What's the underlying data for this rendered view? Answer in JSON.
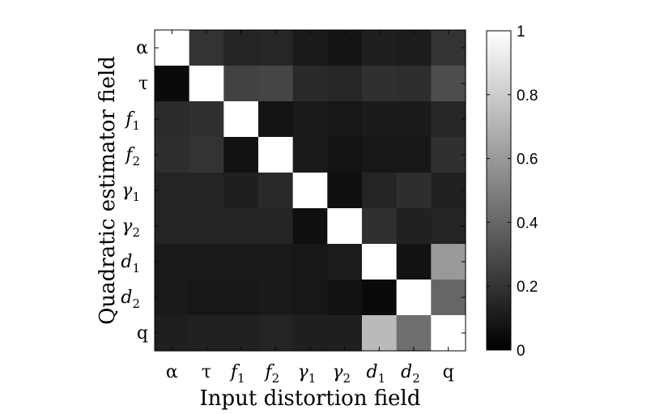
{
  "chart_data": {
    "type": "heatmap",
    "x_categories": [
      "α",
      "τ",
      "f1",
      "f2",
      "γ1",
      "γ2",
      "d1",
      "d2",
      "q"
    ],
    "y_categories": [
      "α",
      "τ",
      "f1",
      "f2",
      "γ1",
      "γ2",
      "d1",
      "d2",
      "q"
    ],
    "x_tick_labels": [
      {
        "base": "α",
        "sub": ""
      },
      {
        "base": "τ",
        "sub": ""
      },
      {
        "base": "f",
        "sub": "1"
      },
      {
        "base": "f",
        "sub": "2"
      },
      {
        "base": "γ",
        "sub": "1"
      },
      {
        "base": "γ",
        "sub": "2"
      },
      {
        "base": "d",
        "sub": "1"
      },
      {
        "base": "d",
        "sub": "2"
      },
      {
        "base": "q",
        "sub": ""
      }
    ],
    "y_tick_labels": [
      {
        "base": "α",
        "sub": ""
      },
      {
        "base": "τ",
        "sub": ""
      },
      {
        "base": "f",
        "sub": "1"
      },
      {
        "base": "f",
        "sub": "2"
      },
      {
        "base": "γ",
        "sub": "1"
      },
      {
        "base": "γ",
        "sub": "2"
      },
      {
        "base": "d",
        "sub": "1"
      },
      {
        "base": "d",
        "sub": "2"
      },
      {
        "base": "q",
        "sub": ""
      }
    ],
    "values": [
      [
        1.0,
        0.2,
        0.14,
        0.15,
        0.1,
        0.08,
        0.12,
        0.11,
        0.2
      ],
      [
        0.04,
        1.0,
        0.26,
        0.27,
        0.16,
        0.15,
        0.19,
        0.18,
        0.3
      ],
      [
        0.17,
        0.19,
        1.0,
        0.08,
        0.1,
        0.09,
        0.1,
        0.1,
        0.15
      ],
      [
        0.18,
        0.2,
        0.07,
        1.0,
        0.1,
        0.08,
        0.09,
        0.09,
        0.19
      ],
      [
        0.14,
        0.14,
        0.12,
        0.16,
        1.0,
        0.06,
        0.14,
        0.18,
        0.13
      ],
      [
        0.14,
        0.14,
        0.14,
        0.14,
        0.06,
        1.0,
        0.19,
        0.13,
        0.14
      ],
      [
        0.1,
        0.1,
        0.1,
        0.1,
        0.09,
        0.11,
        1.0,
        0.07,
        0.6
      ],
      [
        0.1,
        0.09,
        0.09,
        0.1,
        0.09,
        0.07,
        0.04,
        1.0,
        0.4
      ],
      [
        0.12,
        0.13,
        0.13,
        0.14,
        0.12,
        0.12,
        0.73,
        0.43,
        1.0
      ]
    ],
    "xlabel": "Input distortion field",
    "ylabel": "Quadratic estimator field",
    "colorscale": "gray",
    "clim": [
      0,
      1
    ],
    "colorbar_ticks": [
      0,
      0.2,
      0.4,
      0.6,
      0.8,
      1
    ],
    "colorbar_tick_labels": [
      "0",
      "0.2",
      "0.4",
      "0.6",
      "0.8",
      "1"
    ],
    "colorbar_placement": "right"
  }
}
